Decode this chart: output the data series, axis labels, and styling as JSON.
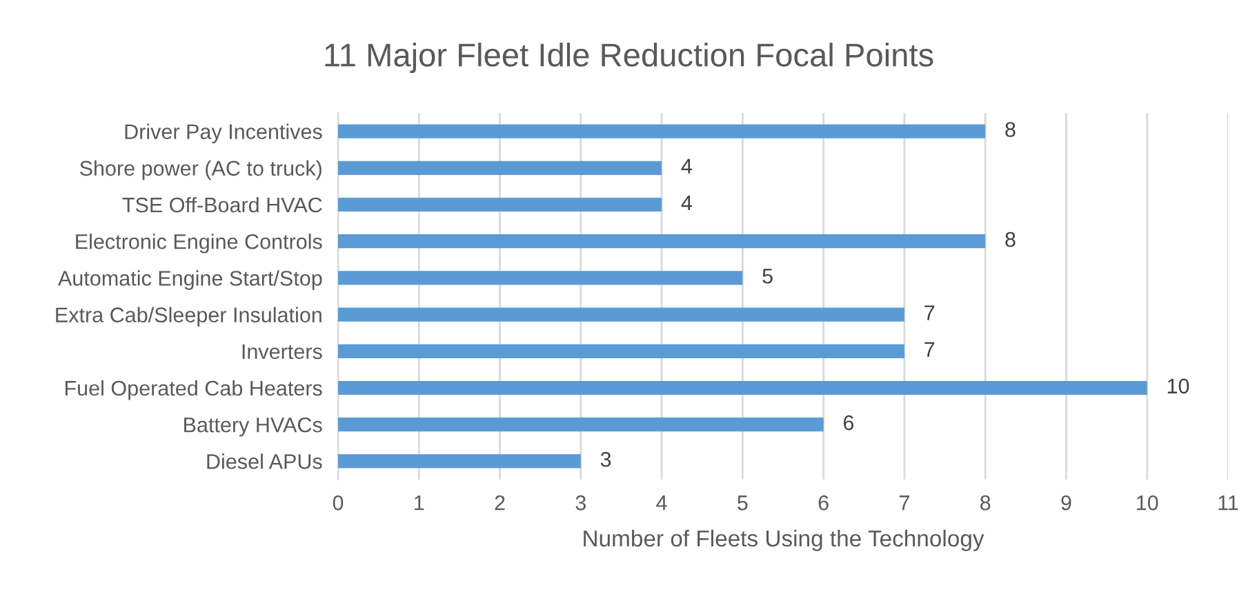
{
  "chart_data": {
    "type": "bar",
    "orientation": "horizontal",
    "title": "11 Major Fleet Idle Reduction Focal Points",
    "xlabel": "Number of Fleets Using the Technology",
    "categories": [
      "Driver Pay Incentives",
      "Shore power (AC to truck)",
      "TSE Off-Board HVAC",
      "Electronic Engine Controls",
      "Automatic Engine Start/Stop",
      "Extra Cab/Sleeper Insulation",
      "Inverters",
      "Fuel Operated Cab Heaters",
      "Battery HVACs",
      "Diesel APUs"
    ],
    "values": [
      8,
      4,
      4,
      8,
      5,
      7,
      7,
      10,
      6,
      3
    ],
    "color": "#5b9bd5",
    "xlim": [
      0,
      11
    ],
    "xticks": [
      0,
      1,
      2,
      3,
      4,
      5,
      6,
      7,
      8,
      9,
      10,
      11
    ],
    "grid": "x",
    "data_labels": true,
    "legend": false
  }
}
